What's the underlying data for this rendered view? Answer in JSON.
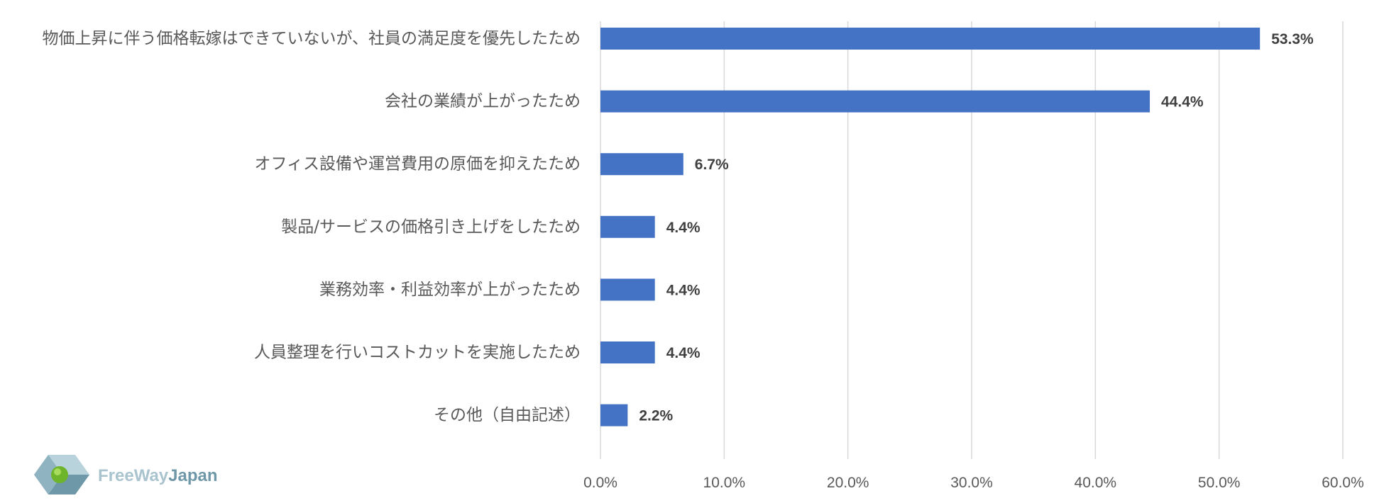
{
  "chart_data": {
    "type": "bar",
    "orientation": "horizontal",
    "categories": [
      "物価上昇に伴う価格転嫁はできていないが、社員の満足度を優先したため",
      "会社の業績が上がったため",
      "オフィス設備や運営費用の原価を抑えたため",
      "製品/サービスの価格引き上げをしたため",
      "業務効率・利益効率が上がったため",
      "人員整理を行いコストカットを実施したため",
      "その他（自由記述）"
    ],
    "values": [
      53.3,
      44.4,
      6.7,
      4.4,
      4.4,
      4.4,
      2.2
    ],
    "data_labels": [
      "53.3%",
      "44.4%",
      "6.7%",
      "4.4%",
      "4.4%",
      "4.4%",
      "2.2%"
    ],
    "xlim": [
      0,
      60
    ],
    "x_ticks": [
      "0.0%",
      "10.0%",
      "20.0%",
      "30.0%",
      "40.0%",
      "50.0%",
      "60.0%"
    ],
    "x_tick_values": [
      0,
      10,
      20,
      30,
      40,
      50,
      60
    ],
    "grid": "vertical",
    "bar_color": "#4472c4",
    "title": "",
    "xlabel": "",
    "ylabel": ""
  },
  "logo": {
    "text_part1": "FreeWay",
    "text_part2": "Japan"
  }
}
